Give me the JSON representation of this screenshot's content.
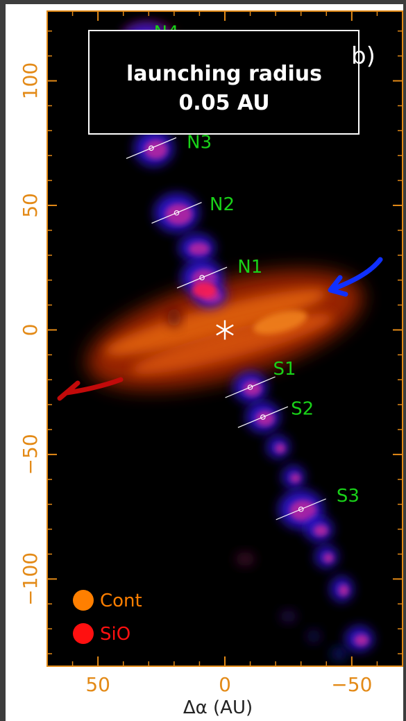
{
  "chart_data": {
    "type": "image",
    "panel_label": "b)",
    "annotation": {
      "lines": [
        "launching radius",
        "0.05 AU"
      ]
    },
    "xlabel": "Δα (AU)",
    "ylabel": "",
    "xlim": [
      70,
      -70
    ],
    "ylim": [
      -135,
      128
    ],
    "x_ticks": [
      {
        "value": 50,
        "label": "50"
      },
      {
        "value": 0,
        "label": "0"
      },
      {
        "value": -50,
        "label": "−50"
      }
    ],
    "y_ticks": [
      {
        "value": 100,
        "label": "100"
      },
      {
        "value": 50,
        "label": "50"
      },
      {
        "value": 0,
        "label": "0"
      },
      {
        "value": -50,
        "label": "−50"
      },
      {
        "value": -100,
        "label": "−100"
      }
    ],
    "source_marker": {
      "x": 0,
      "y": 0,
      "symbol": "*"
    },
    "knots": [
      {
        "name": "N4",
        "x": 31,
        "y": 116,
        "label_x": 28,
        "label_y": 117
      },
      {
        "name": "N3",
        "x": 29,
        "y": 73,
        "label_x": 15,
        "label_y": 73
      },
      {
        "name": "N2",
        "x": 19,
        "y": 47,
        "label_x": 6,
        "label_y": 48
      },
      {
        "name": "N1",
        "x": 9,
        "y": 21,
        "label_x": -5,
        "label_y": 23
      },
      {
        "name": "S1",
        "x": -10,
        "y": -23,
        "label_x": -19,
        "label_y": -18
      },
      {
        "name": "S2",
        "x": -15,
        "y": -35,
        "label_x": -26,
        "label_y": -34
      },
      {
        "name": "S3",
        "x": -30,
        "y": -72,
        "label_x": -44,
        "label_y": -69
      }
    ],
    "legend": [
      {
        "label": "Cont",
        "color": "#ff7f00"
      },
      {
        "label": "SiO",
        "color": "#ff0000"
      }
    ],
    "colors": {
      "axis": "#e38a17",
      "knot_label": "#19d119",
      "redshifted_arrow": "#cc0000",
      "blueshifted_arrow": "#1030ff"
    }
  }
}
